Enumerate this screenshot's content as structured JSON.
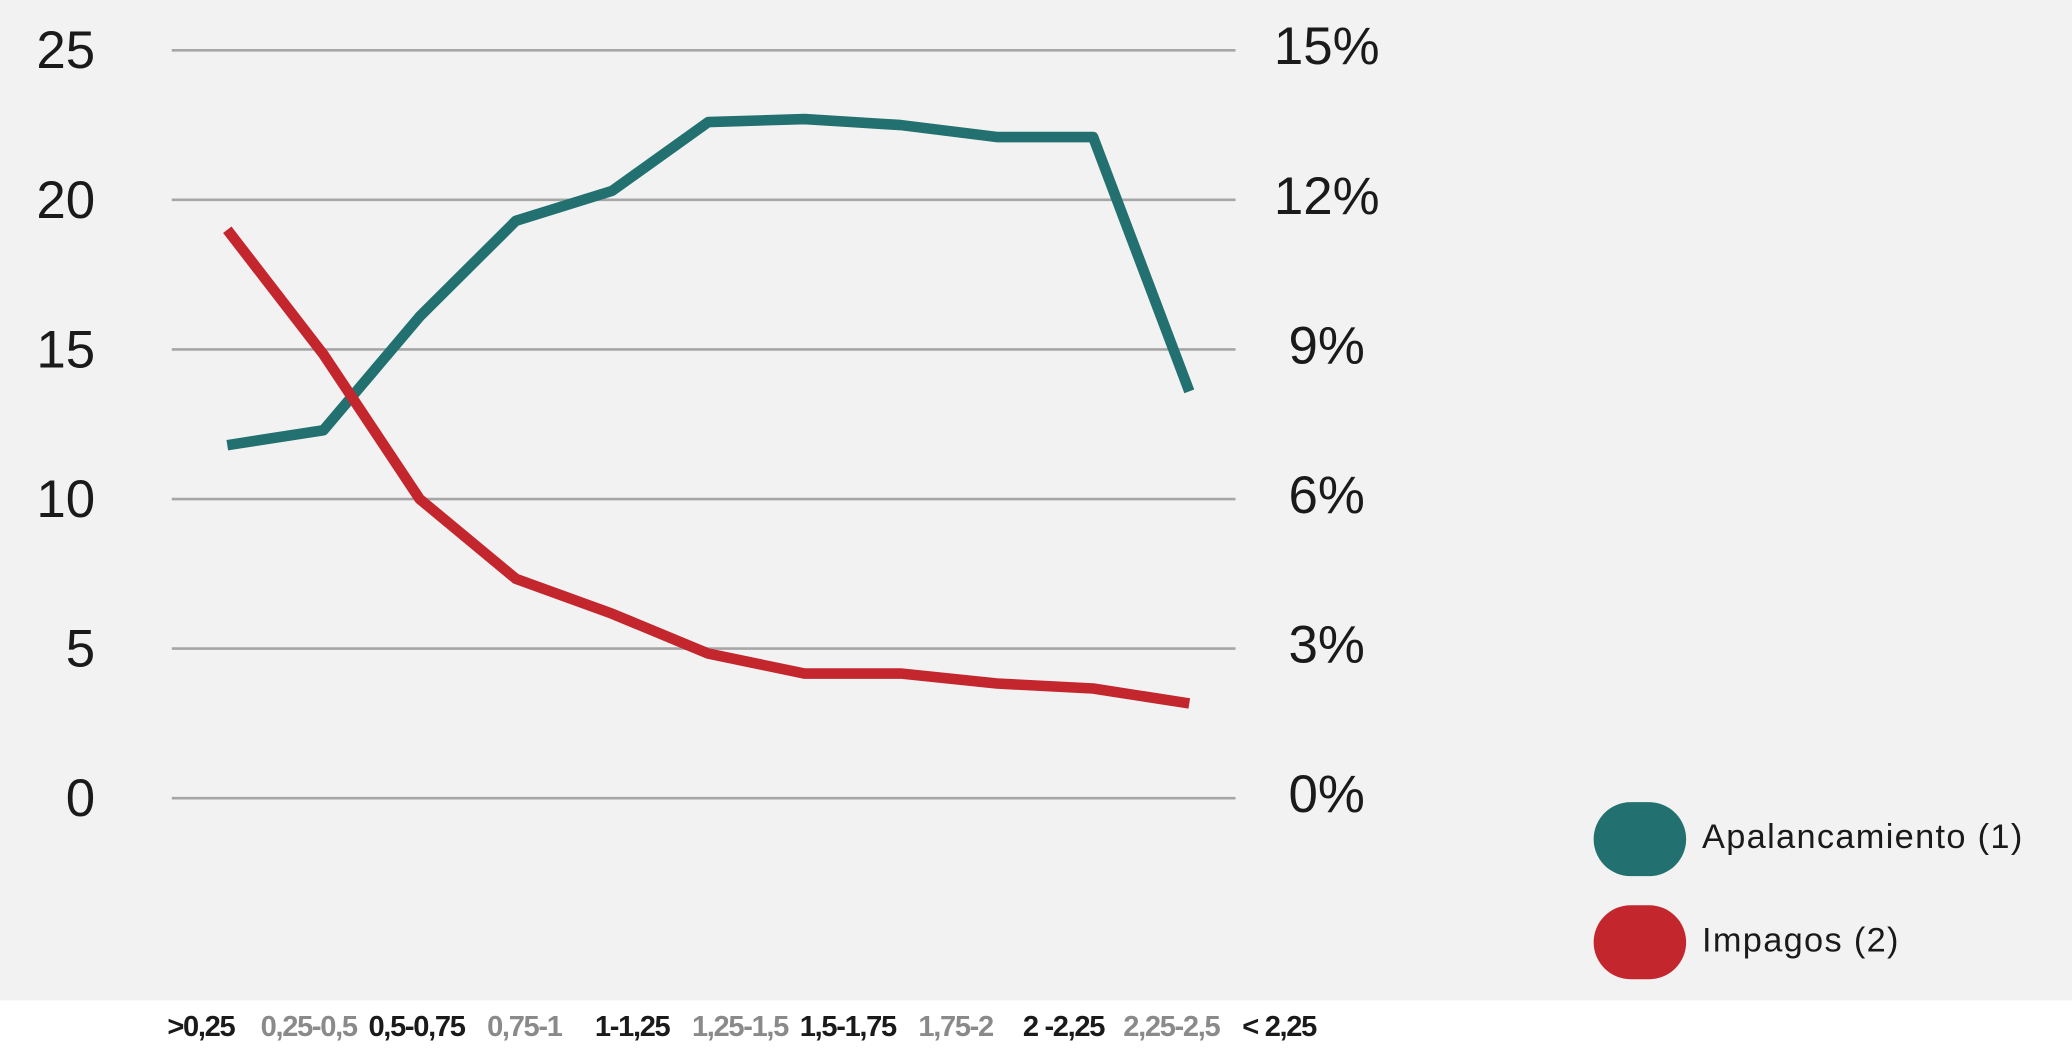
{
  "chart_data": {
    "type": "line",
    "categories": [
      ">0,25",
      "0,25-0,5",
      "0,5-0,75",
      "0,75-1",
      "1-1,25",
      "1,25-1,5",
      "1,5-1,75",
      "1,75-2",
      "2 -2,25",
      "2,25-2,5",
      "< 2,25"
    ],
    "series": [
      {
        "name": "Apalancamiento (1)",
        "color": "#22706f",
        "values": [
          11.8,
          12.3,
          16.1,
          19.3,
          20.3,
          22.6,
          22.7,
          22.5,
          22.1,
          22.1,
          13.6
        ]
      },
      {
        "name": "Impagos (2)",
        "color": "#c4262e",
        "axis": "y2",
        "values": [
          11.4,
          8.9,
          6.0,
          4.4,
          3.7,
          2.9,
          2.5,
          2.5,
          2.3,
          2.2,
          1.9
        ]
      }
    ],
    "ylim": [
      0,
      25
    ],
    "yticks": [
      0,
      5,
      10,
      15,
      20,
      25
    ],
    "y2lim": [
      0,
      15
    ],
    "y2ticks": [
      {
        "value": 0,
        "label": "0%"
      },
      {
        "value": 3,
        "label": "3%"
      },
      {
        "value": 6,
        "label": "6%"
      },
      {
        "value": 9,
        "label": "9%"
      },
      {
        "value": 12,
        "label": "12%"
      },
      {
        "value": 15,
        "label": "15%"
      }
    ],
    "grid": true,
    "legend": "lower right"
  }
}
